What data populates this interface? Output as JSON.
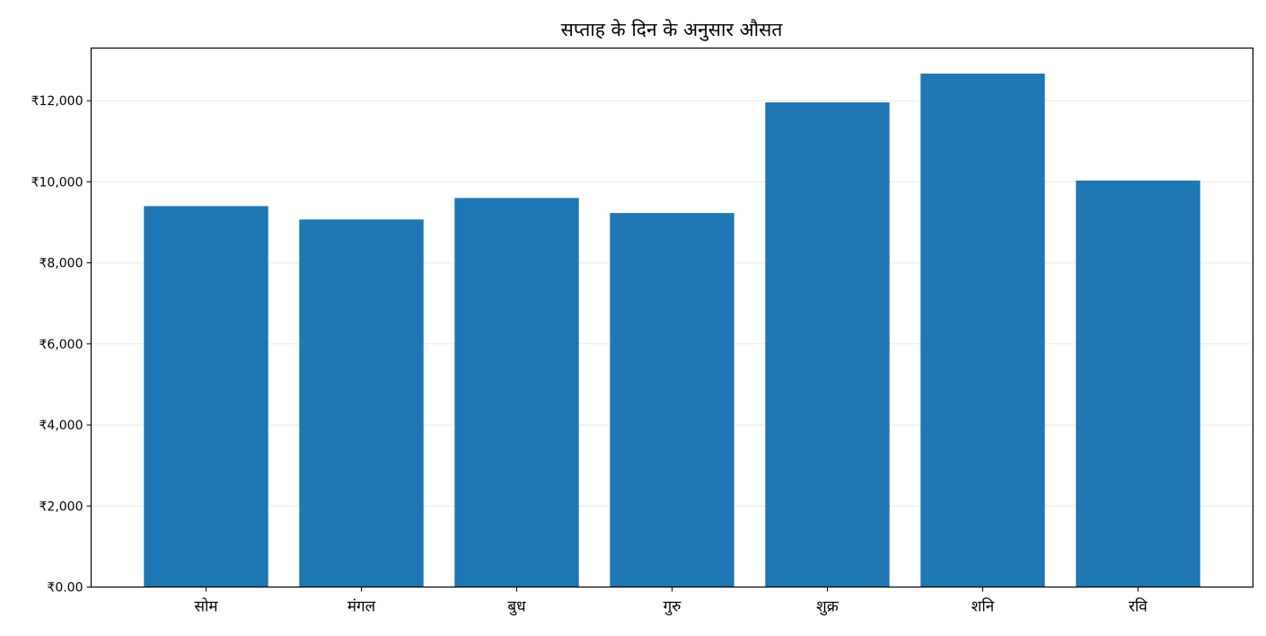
{
  "chart_data": {
    "type": "bar",
    "title": "सप्ताह के दिन के अनुसार औसत",
    "xlabel": "",
    "ylabel": "",
    "categories": [
      "सोम",
      "मंगल",
      "बुध",
      "गुरु",
      "शुक्र",
      "शनि",
      "रवि"
    ],
    "values": [
      9400,
      9070,
      9600,
      9230,
      11960,
      12670,
      10030
    ],
    "ylim": [
      0,
      13300
    ],
    "yticks": [
      0,
      2000,
      4000,
      6000,
      8000,
      10000,
      12000
    ],
    "ytick_labels": [
      "₹0.00",
      "₹2,000",
      "₹4,000",
      "₹6,000",
      "₹8,000",
      "₹10,000",
      "₹12,000"
    ],
    "grid": "y",
    "bar_color": "#1f77b4",
    "grid_color": "#ebebeb"
  }
}
